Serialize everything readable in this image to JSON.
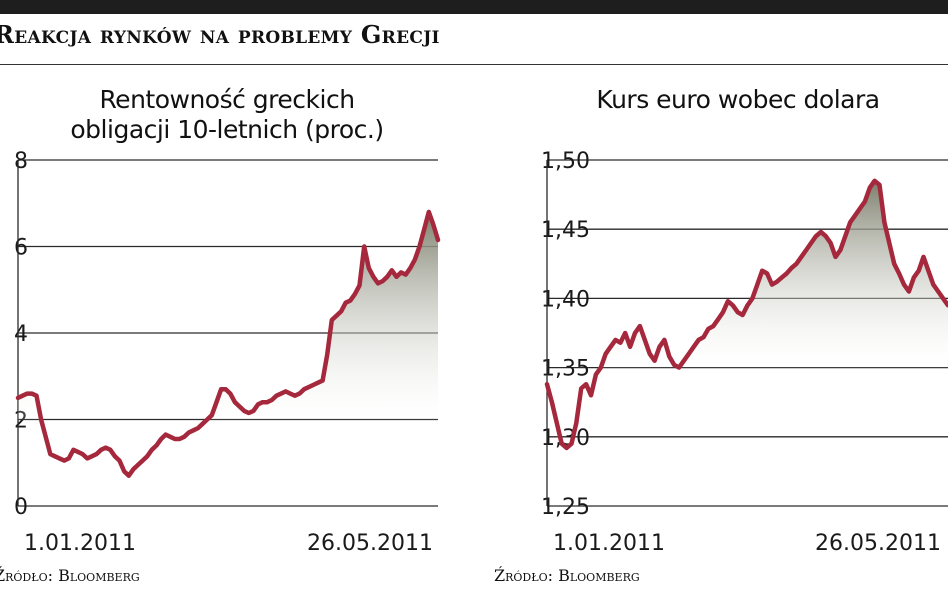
{
  "headline": "Reakcja rynków na problemy Grecji",
  "colors": {
    "line": "#a5283c",
    "grid": "#2a2a2a",
    "area_top": "#7d7f6c",
    "area_bottom": "#ffffff"
  },
  "chart_data": [
    {
      "type": "area",
      "title": "Rentowność greckich obligacji 10-letnich (proc.)",
      "title_lines": [
        "Rentowność greckich",
        "obligacji 10-letnich (proc.)"
      ],
      "y_ticks": [
        "8",
        "6",
        "4",
        "2",
        "0"
      ],
      "ylim": [
        0,
        8
      ],
      "grid": true,
      "x_labels": [
        "1.01.2011",
        "26.05.2011"
      ],
      "x_range": [
        "2010-12-31",
        "2011-06-03"
      ],
      "series": [
        {
          "values": [
            2.5,
            2.55,
            2.6,
            2.6,
            2.55,
            2.0,
            1.6,
            1.2,
            1.15,
            1.1,
            1.05,
            1.1,
            1.3,
            1.25,
            1.2,
            1.1,
            1.15,
            1.2,
            1.3,
            1.35,
            1.3,
            1.15,
            1.05,
            0.8,
            0.7,
            0.85,
            0.95,
            1.05,
            1.15,
            1.3,
            1.4,
            1.55,
            1.65,
            1.6,
            1.55,
            1.55,
            1.6,
            1.7,
            1.75,
            1.8,
            1.9,
            2.0,
            2.1,
            2.4,
            2.7,
            2.7,
            2.6,
            2.4,
            2.3,
            2.2,
            2.15,
            2.2,
            2.35,
            2.4,
            2.4,
            2.45,
            2.55,
            2.6,
            2.65,
            2.6,
            2.55,
            2.6,
            2.7,
            2.75,
            2.8,
            2.85,
            2.9,
            3.5,
            4.3,
            4.4,
            4.5,
            4.7,
            4.75,
            4.9,
            5.1,
            6.0,
            5.5,
            5.3,
            5.15,
            5.2,
            5.3,
            5.45,
            5.3,
            5.4,
            5.35,
            5.5,
            5.7,
            6.0,
            6.4,
            6.8,
            6.5,
            6.15
          ]
        }
      ]
    },
    {
      "type": "area",
      "title": "Kurs euro wobec dolara",
      "title_lines": [
        "Kurs euro wobec dolara"
      ],
      "y_ticks": [
        "1,50",
        "1,45",
        "1,40",
        "1,35",
        "1,30",
        "1,25"
      ],
      "ylim": [
        1.25,
        1.5
      ],
      "grid": true,
      "x_labels": [
        "1.01.2011",
        "26.05.2011"
      ],
      "x_range": [
        "2010-12-31",
        "2011-06-03"
      ],
      "series": [
        {
          "values": [
            1.338,
            1.325,
            1.31,
            1.295,
            1.292,
            1.295,
            1.31,
            1.335,
            1.338,
            1.33,
            1.345,
            1.35,
            1.36,
            1.365,
            1.37,
            1.368,
            1.375,
            1.365,
            1.375,
            1.38,
            1.37,
            1.36,
            1.355,
            1.365,
            1.37,
            1.358,
            1.352,
            1.35,
            1.355,
            1.36,
            1.365,
            1.37,
            1.372,
            1.378,
            1.38,
            1.385,
            1.39,
            1.398,
            1.395,
            1.39,
            1.388,
            1.395,
            1.4,
            1.41,
            1.42,
            1.418,
            1.41,
            1.412,
            1.415,
            1.418,
            1.422,
            1.425,
            1.43,
            1.435,
            1.44,
            1.445,
            1.448,
            1.445,
            1.44,
            1.43,
            1.435,
            1.445,
            1.455,
            1.46,
            1.465,
            1.47,
            1.48,
            1.485,
            1.482,
            1.455,
            1.44,
            1.425,
            1.418,
            1.41,
            1.405,
            1.415,
            1.42,
            1.43,
            1.42,
            1.41,
            1.405,
            1.4,
            1.395
          ]
        }
      ]
    }
  ],
  "sources": [
    "Źródło: Bloomberg",
    "Źródło: Bloomberg"
  ]
}
